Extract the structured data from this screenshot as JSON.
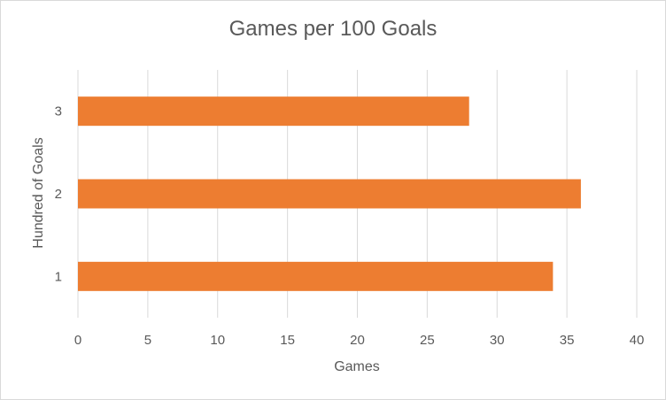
{
  "chart_data": {
    "type": "bar",
    "orientation": "horizontal",
    "title": "Games per 100 Goals",
    "xlabel": "Games",
    "ylabel": "Hundred of Goals",
    "categories": [
      "1",
      "2",
      "3"
    ],
    "values": [
      34,
      36,
      28
    ],
    "xlim": [
      0,
      40
    ],
    "xticks": [
      0,
      5,
      10,
      15,
      20,
      25,
      30,
      35,
      40
    ],
    "grid": true,
    "legend": "none",
    "colors": {
      "bar": "#ED7D31",
      "grid": "#D9D9D9",
      "text": "#595959"
    }
  }
}
